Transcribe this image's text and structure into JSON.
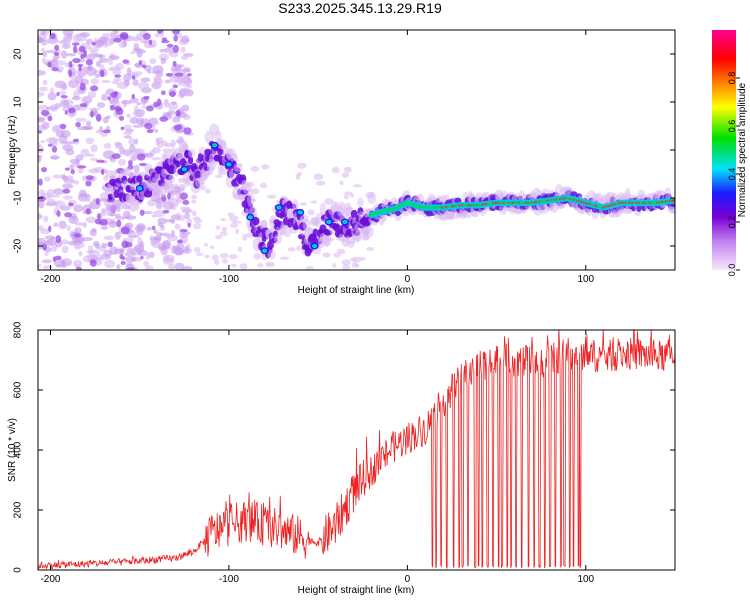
{
  "title": "S233.2025.345.13.29.R19",
  "chart_data": [
    {
      "type": "heatmap",
      "title": "S233.2025.345.13.29.R19",
      "xlabel": "Height of straight line (km)",
      "ylabel": "Frequency (Hz)",
      "xlim": [
        -207,
        150
      ],
      "ylim": [
        -25,
        25
      ],
      "xticks": [
        -200,
        -100,
        0,
        100
      ],
      "yticks": [
        20,
        10,
        0,
        -10,
        -20
      ],
      "colorbar": {
        "label": "Normalized spectral amplitude",
        "range": [
          0,
          1
        ],
        "ticks": [
          0.0,
          0.2,
          0.4,
          0.6,
          0.8
        ],
        "colors": [
          "#f8e8fc",
          "#7a00d6",
          "#1a1aff",
          "#00e0ff",
          "#00e000",
          "#ffff00",
          "#ff8000",
          "#ff0000",
          "#ff0090"
        ]
      },
      "ridge": {
        "x": [
          -160,
          -150,
          -135,
          -125,
          -118,
          -108,
          -100,
          -92,
          -85,
          -78,
          -70,
          -62,
          -55,
          -48,
          -40,
          -32,
          -25,
          -15,
          -5,
          0,
          10,
          20,
          30,
          40,
          50,
          60,
          70,
          80,
          90,
          100,
          110,
          120,
          130,
          140,
          150
        ],
        "y": [
          -8,
          -8,
          -5,
          -2,
          -5,
          1,
          -3,
          -8,
          -16,
          -20,
          -13,
          -14,
          -20,
          -16,
          -15,
          -16,
          -14,
          -13,
          -12,
          -11,
          -12,
          -12,
          -11.5,
          -11.5,
          -11,
          -11,
          -11,
          -10.5,
          -10,
          -11,
          -12,
          -11,
          -11,
          -11,
          -10.5
        ]
      }
    },
    {
      "type": "line",
      "xlabel": "Height of straight line (km)",
      "ylabel": "SNR (10 * v/v)",
      "xlim": [
        -207,
        150
      ],
      "ylim": [
        0,
        800
      ],
      "xticks": [
        -200,
        -100,
        0,
        100
      ],
      "yticks": [
        0,
        200,
        400,
        600,
        800
      ],
      "color": "#ee2222",
      "series": [
        {
          "name": "SNR",
          "x": [
            -207,
            -180,
            -150,
            -130,
            -120,
            -110,
            -100,
            -90,
            -80,
            -70,
            -60,
            -50,
            -40,
            -30,
            -20,
            -10,
            0,
            10,
            20,
            30,
            40,
            50,
            60,
            70,
            80,
            90,
            100,
            110,
            120,
            130,
            140,
            150
          ],
          "values": [
            15,
            20,
            30,
            40,
            60,
            120,
            150,
            165,
            150,
            130,
            110,
            90,
            150,
            260,
            330,
            400,
            440,
            470,
            560,
            640,
            680,
            700,
            700,
            690,
            700,
            720,
            720,
            710,
            720,
            720,
            710,
            720
          ],
          "dropouts_x": [
            14,
            16,
            19,
            22,
            26,
            29,
            31,
            34,
            38,
            40,
            42,
            45,
            48,
            51,
            53,
            56,
            58,
            61,
            64,
            68,
            71,
            74,
            77,
            80,
            83,
            86,
            88,
            91,
            93,
            96,
            97
          ]
        }
      ]
    }
  ]
}
